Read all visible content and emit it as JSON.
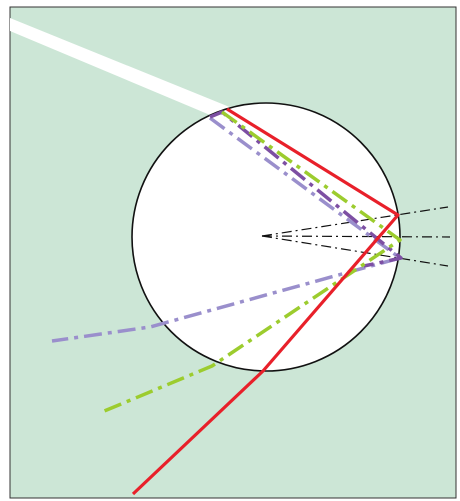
{
  "figure": {
    "colors": {
      "background": "#cce6d6",
      "frame": "#333333",
      "incident_beam": "#ffffff",
      "droplet_fill": "#ffffff",
      "droplet_edge": "#111111",
      "red_ray": "#e8202a",
      "green_ray": "#9ccc2e",
      "violet_ray": "#7d4fa3",
      "lavender_ray": "#9a8fcc",
      "normal_lines": "#111111"
    },
    "rays": [
      {
        "name": "red-ray",
        "style": "solid"
      },
      {
        "name": "green-ray",
        "style": "dash-dot"
      },
      {
        "name": "violet-ray",
        "style": "dash-dot"
      },
      {
        "name": "lavender-ray",
        "style": "dash-dot"
      }
    ]
  }
}
